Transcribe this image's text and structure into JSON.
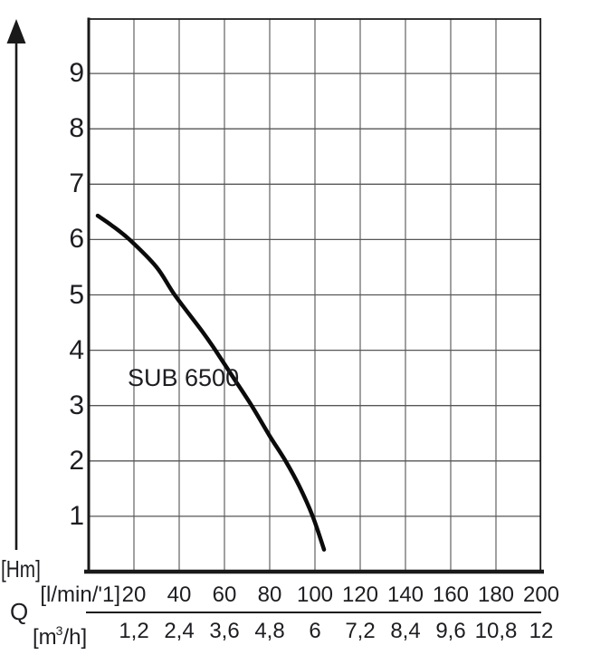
{
  "chart_data": {
    "type": "line",
    "title": "",
    "curve_label": "SUB 6500",
    "grid": true,
    "legend": "none",
    "y_axis": {
      "unit": "[Hm]",
      "ticks": [
        1,
        2,
        3,
        4,
        5,
        6,
        7,
        8,
        9
      ],
      "range": [
        0,
        10
      ]
    },
    "x_axis": {
      "quantity_label": "Q",
      "range_lmin": [
        0,
        200
      ],
      "row1": {
        "unit": "[l/min/'1]",
        "ticks": [
          "20",
          "40",
          "60",
          "80",
          "100",
          "120",
          "140",
          "160",
          "180",
          "200"
        ]
      },
      "row2": {
        "unit_prefix": "[m",
        "unit_sup": "3",
        "unit_suffix": "/h]",
        "ticks": [
          "1,2",
          "2,4",
          "3,6",
          "4,8",
          "6",
          "7,2",
          "8,4",
          "9,6",
          "10,8",
          "12"
        ]
      }
    },
    "series": [
      {
        "name": "SUB 6500",
        "points_q_lmin_h_m": [
          [
            4,
            6.43
          ],
          [
            10,
            6.26
          ],
          [
            18,
            6.0
          ],
          [
            30,
            5.5
          ],
          [
            38,
            5.0
          ],
          [
            50,
            4.35
          ],
          [
            56,
            4.0
          ],
          [
            64,
            3.5
          ],
          [
            72,
            3.0
          ],
          [
            80,
            2.45
          ],
          [
            87,
            2.0
          ],
          [
            93,
            1.55
          ],
          [
            99,
            1.0
          ],
          [
            104,
            0.4
          ]
        ]
      }
    ]
  },
  "colors": {
    "curve": "#0b0b0b",
    "grid_horizontal": "#565656",
    "grid_vertical": "#6e6e6e",
    "border": "#1a1a1a",
    "text": "#1d1d22",
    "background": "#ffffff"
  }
}
